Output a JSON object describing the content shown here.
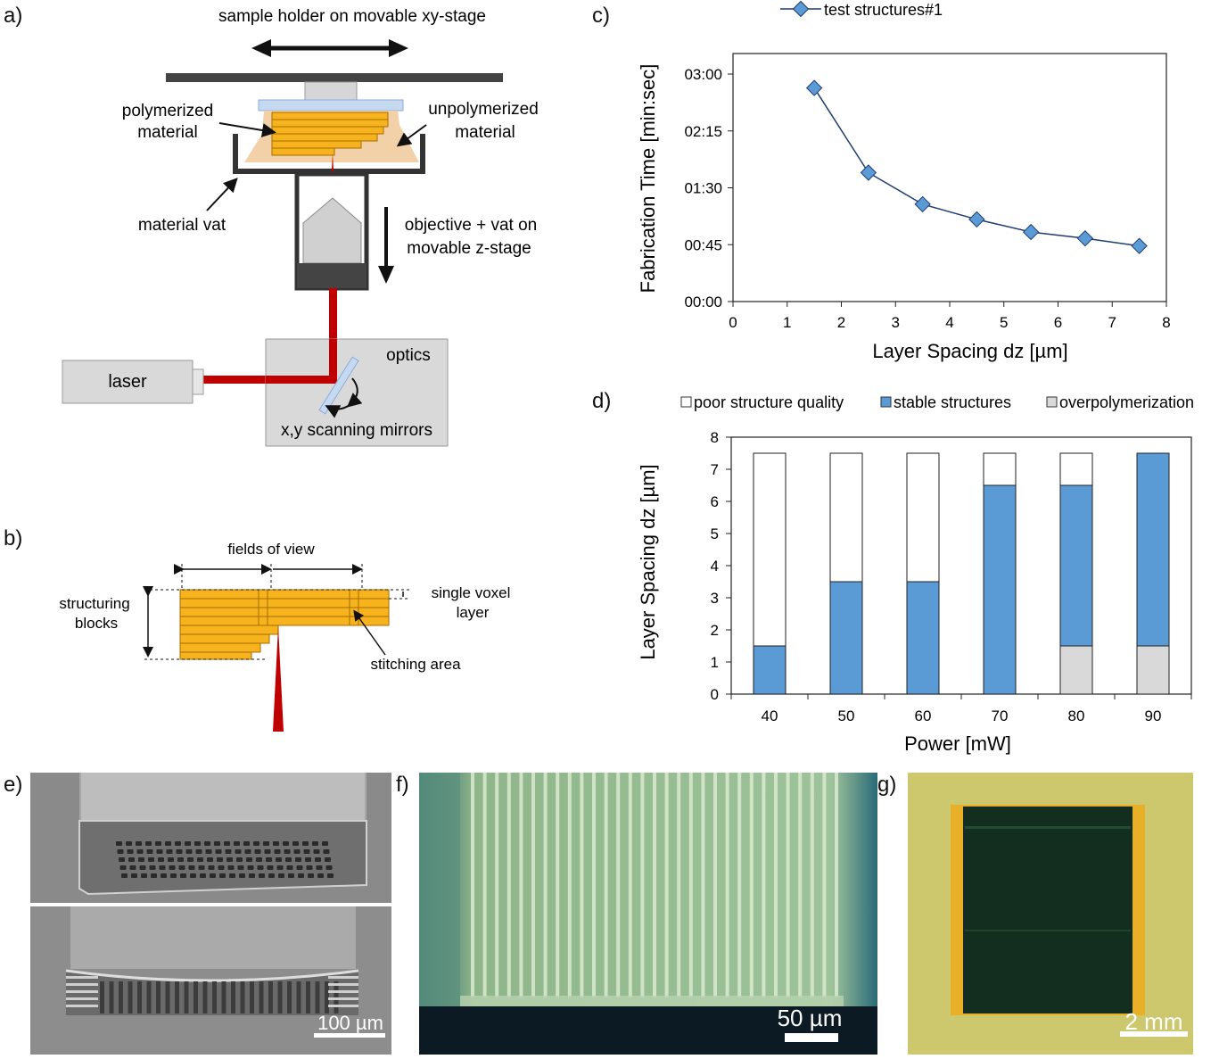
{
  "panels": {
    "a": {
      "label": "a)",
      "stage_label": "sample holder on movable xy-stage",
      "polymerized_label": [
        "polymerized",
        "material"
      ],
      "unpolymerized_label": [
        "unpolymerized",
        "material"
      ],
      "vat_label": "material vat",
      "objective_label": [
        "objective + vat on",
        "movable z-stage"
      ],
      "laser_label": "laser",
      "optics_label": "optics",
      "mirrors_label": "x,y scanning mirrors"
    },
    "b": {
      "label": "b)",
      "fov_label": "fields of view",
      "blocks_label": [
        "structuring",
        "blocks"
      ],
      "voxel_label": [
        "single voxel",
        "layer"
      ],
      "stitch_label": "stitching area"
    },
    "c": {
      "label": "c)"
    },
    "d": {
      "label": "d)"
    },
    "e": {
      "label": "e)",
      "scalebar": "100 µm"
    },
    "f": {
      "label": "f)",
      "scalebar": "50 µm"
    },
    "g": {
      "label": "g)",
      "scalebar": "2 mm"
    }
  },
  "chart_data": [
    {
      "type": "line",
      "legend": "top-center",
      "series": [
        {
          "name": "test structures#1",
          "color": "#1f3b73",
          "marker_color": "#5b9bd5",
          "x": [
            1.5,
            2.5,
            3.5,
            4.5,
            5.5,
            6.5,
            7.5
          ],
          "y_seconds": [
            169,
            102,
            77,
            65,
            55,
            50,
            44
          ]
        }
      ],
      "xlabel": "Layer Spacing dz [µm]",
      "ylabel": "Fabrication Time [min:sec]",
      "xlim": [
        0,
        8
      ],
      "xticks": [
        "0",
        "1",
        "2",
        "3",
        "4",
        "5",
        "6",
        "7",
        "8"
      ],
      "ylim_seconds": [
        0,
        180
      ],
      "yticks": [
        "00:00",
        "00:45",
        "01:30",
        "02:15",
        "03:00"
      ],
      "grid": false
    },
    {
      "type": "bar",
      "stacked": true,
      "legend": "top",
      "categories": [
        "40",
        "50",
        "60",
        "70",
        "80",
        "90"
      ],
      "series": [
        {
          "name": "overpolymerization",
          "color": "#d9d9d9",
          "values": [
            0,
            0,
            0,
            0,
            1.5,
            1.5
          ]
        },
        {
          "name": "stable structures",
          "color": "#5b9bd5",
          "values": [
            1.5,
            3.5,
            3.5,
            6.5,
            5.0,
            6.0
          ]
        },
        {
          "name": "poor structure quality",
          "color": "#ffffff",
          "values": [
            6.0,
            4.0,
            4.0,
            1.0,
            1.0,
            0
          ]
        }
      ],
      "xlabel": "Power [mW]",
      "ylabel": "Layer Spacing dz [µm]",
      "ylim": [
        0,
        8
      ],
      "yticks": [
        "0",
        "1",
        "2",
        "3",
        "4",
        "5",
        "6",
        "7",
        "8"
      ],
      "grid": false
    }
  ]
}
